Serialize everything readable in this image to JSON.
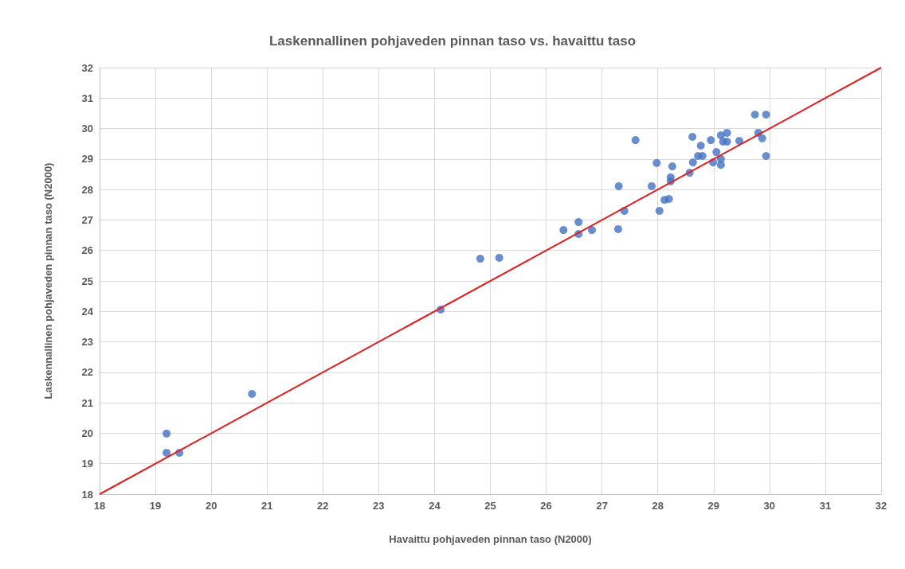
{
  "chart_data": {
    "type": "scatter",
    "title": "Laskennallinen pohjaveden pinnan taso vs. havaittu taso",
    "xlabel": "Havaittu pohjaveden pinnan taso (N2000)",
    "ylabel": "Laskennallinen pohjaveden pinnan taso (N2000)",
    "series": [
      {
        "color": "#4472c4",
        "marker": "circle",
        "x": [
          19.2,
          19.2,
          19.43,
          20.73,
          24.11,
          24.82,
          25.16,
          26.31,
          26.58,
          26.58,
          26.82,
          27.29,
          27.3,
          27.4,
          27.6,
          27.89,
          27.98,
          28.03,
          28.12,
          28.2,
          28.23,
          28.23,
          28.26,
          28.57,
          28.62,
          28.63,
          28.77,
          28.72,
          28.8,
          28.95,
          28.99,
          29.05,
          29.13,
          29.13,
          29.13,
          29.17,
          29.24,
          29.24,
          29.46,
          29.74,
          29.8,
          29.87,
          29.94,
          29.94
        ],
        "values": [
          19.99,
          19.36,
          19.36,
          21.29,
          24.06,
          25.73,
          25.76,
          26.67,
          26.93,
          26.54,
          26.67,
          26.7,
          28.11,
          27.3,
          29.62,
          28.11,
          28.87,
          27.3,
          27.66,
          27.69,
          28.4,
          28.27,
          28.76,
          28.55,
          29.73,
          28.89,
          29.44,
          29.1,
          29.1,
          29.62,
          28.89,
          29.23,
          29.78,
          29.0,
          28.81,
          29.57,
          29.57,
          29.86,
          29.6,
          30.46,
          29.86,
          29.68,
          30.46,
          29.1
        ]
      },
      {
        "type": "line",
        "color": "#e02020",
        "marker": "none",
        "line_style": "solid",
        "x": [
          18,
          32
        ],
        "values": [
          18,
          32
        ]
      }
    ],
    "xlim": [
      18,
      32
    ],
    "xticks": [
      18,
      19,
      20,
      21,
      22,
      23,
      24,
      25,
      26,
      27,
      28,
      29,
      30,
      31,
      32
    ],
    "ylim": [
      18,
      32
    ],
    "yticks": [
      18,
      19,
      20,
      21,
      22,
      23,
      24,
      25,
      26,
      27,
      28,
      29,
      30,
      31,
      32
    ],
    "grid": true
  }
}
